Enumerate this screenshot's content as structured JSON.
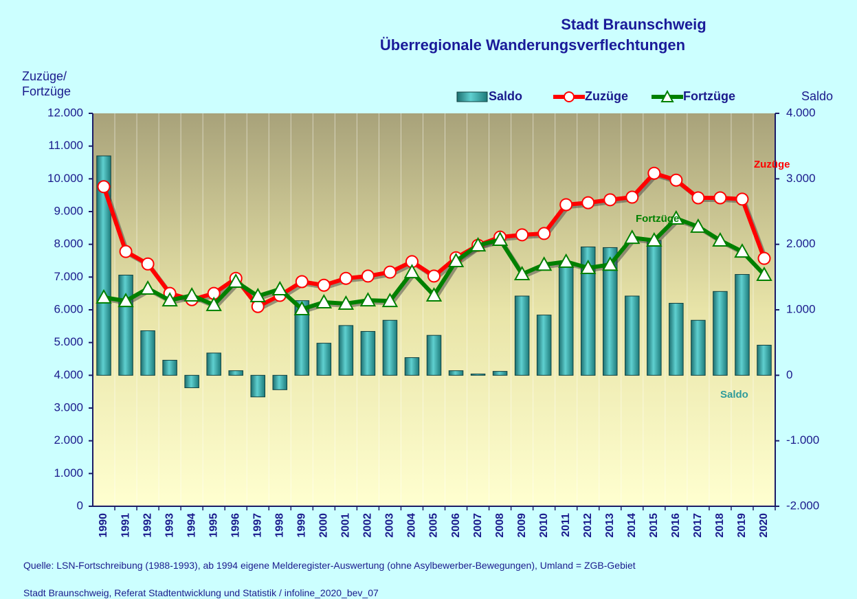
{
  "chart_data": {
    "type": "bar",
    "title": "Stadt Braunschweig",
    "subtitle": "Überregionale Wanderungsverflechtungen",
    "y_label": [
      "Zuzüge/",
      "Fortzüge"
    ],
    "y2_label": "Saldo",
    "categories": [
      "1990",
      "1991",
      "1992",
      "1993",
      "1994",
      "1995",
      "1996",
      "1997",
      "1998",
      "1999",
      "2000",
      "2001",
      "2002",
      "2003",
      "2004",
      "2005",
      "2006",
      "2007",
      "2008",
      "2009",
      "2010",
      "2011",
      "2012",
      "2013",
      "2014",
      "2015",
      "2016",
      "2017",
      "2018",
      "2019",
      "2020"
    ],
    "series": [
      {
        "name": "Saldo",
        "type": "bar",
        "axis": "y2",
        "color": "#2e9b9b",
        "values": [
          3350,
          1530,
          680,
          230,
          -190,
          340,
          70,
          -330,
          -220,
          1140,
          490,
          760,
          670,
          840,
          270,
          610,
          70,
          20,
          60,
          1210,
          920,
          1710,
          1960,
          1950,
          1210,
          2060,
          1100,
          840,
          1280,
          1540,
          460
        ]
      },
      {
        "name": "Zuzüge",
        "type": "line",
        "marker": "circle",
        "color": "#ff0000",
        "values": [
          9760,
          7780,
          7400,
          6500,
          6310,
          6500,
          6960,
          6100,
          6440,
          6860,
          6750,
          6960,
          7030,
          7150,
          7470,
          7030,
          7590,
          7970,
          8220,
          8290,
          8330,
          9210,
          9270,
          9360,
          9440,
          10170,
          9960,
          9420,
          9420,
          9380,
          7570
        ]
      },
      {
        "name": "Fortzüge",
        "type": "line",
        "marker": "triangle",
        "color": "#008000",
        "values": [
          6380,
          6270,
          6650,
          6290,
          6440,
          6150,
          6860,
          6420,
          6630,
          6020,
          6230,
          6190,
          6290,
          6270,
          7150,
          6440,
          7490,
          7970,
          8140,
          7090,
          7380,
          7470,
          7280,
          7380,
          8200,
          8120,
          8790,
          8540,
          8120,
          7780,
          7070
        ]
      }
    ],
    "ylim": [
      0,
      12000
    ],
    "yticks": [
      0,
      {
        "value": 1000,
        "label": "1.000"
      },
      {
        "value": 2000,
        "label": "2.000"
      },
      {
        "value": 3000,
        "label": "3.000"
      },
      {
        "value": 4000,
        "label": "4.000"
      },
      {
        "value": 5000,
        "label": "5.000"
      },
      {
        "value": 6000,
        "label": "6.000"
      },
      {
        "value": 7000,
        "label": "7.000"
      },
      {
        "value": 8000,
        "label": "8.000"
      },
      {
        "value": 9000,
        "label": "9.000"
      },
      {
        "value": 10000,
        "label": "10.000"
      },
      {
        "value": 11000,
        "label": "11.000"
      },
      {
        "value": 12000,
        "label": "12.000"
      }
    ],
    "y2lim": [
      -2000,
      4000
    ],
    "y2ticks": [
      {
        "value": -2000,
        "label": "-2.000"
      },
      {
        "value": -1000,
        "label": "-1.000"
      },
      0,
      {
        "value": 1000,
        "label": "1.000"
      },
      {
        "value": 2000,
        "label": "2.000"
      },
      {
        "value": 3000,
        "label": "3.000"
      },
      {
        "value": 4000,
        "label": "4.000"
      }
    ],
    "annotations": [
      "Zuzüge",
      "Fortzüge",
      "Saldo"
    ],
    "footer": [
      "Quelle: LSN-Fortschreibung (1988-1993), ab 1994 eigene Melderegister-Auswertung (ohne Asylbewerber-Bewegungen), Umland = ZGB-Gebiet",
      "Stadt Braunschweig, Referat Stadtentwicklung und Statistik / infoline_2020_bev_07"
    ]
  }
}
